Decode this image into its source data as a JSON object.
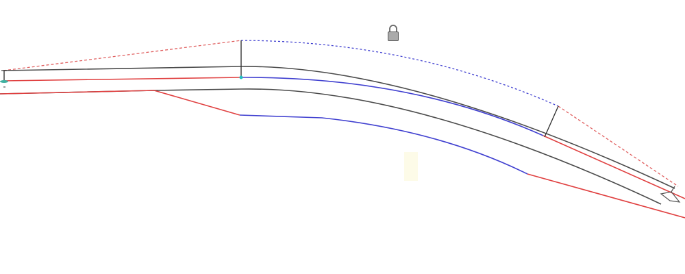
{
  "drawing": {
    "colors": {
      "centerline": "#4a4a4a",
      "tangent": "#e04040",
      "curve": "#4040d0",
      "marker": "#20c0c0",
      "lock": "#888888"
    },
    "icons": [
      "lock-icon",
      "start-marker-icon",
      "end-marker-icon"
    ]
  }
}
